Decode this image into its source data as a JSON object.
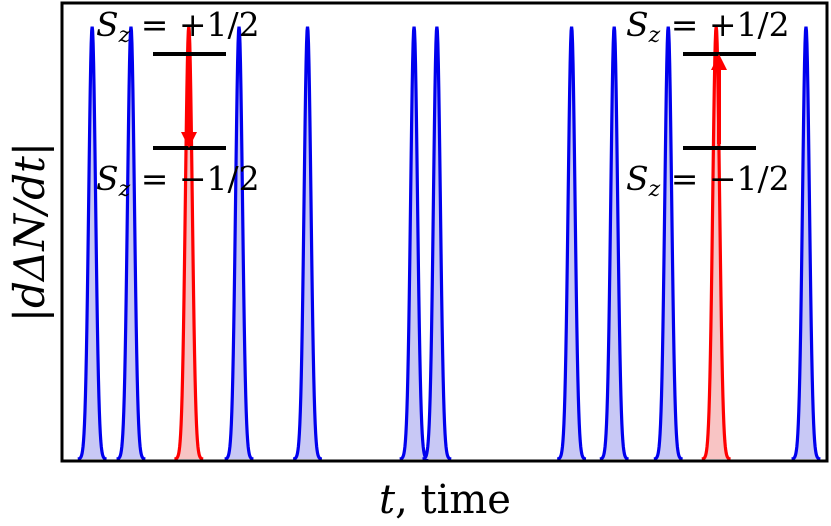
{
  "chart_data": {
    "type": "area",
    "xlabel_var": "t",
    "xlabel_text": ", time",
    "ylabel": "|dΔN/dt|",
    "xlim": [
      0,
      1
    ],
    "ylim": [
      0,
      1.05
    ],
    "grid": false,
    "legend": "none",
    "pulse_height": 1.0,
    "series": [
      {
        "color": "#0000ee",
        "fill": "#c8c8f5",
        "pulses": [
          0.037,
          0.088,
          0.23,
          0.32,
          0.46,
          0.49,
          0.667,
          0.723,
          0.794,
          0.975
        ]
      },
      {
        "color": "#ff0000",
        "fill": "#f8c4c4",
        "pulses": [
          0.164,
          0.857
        ]
      }
    ],
    "annotations": {
      "left": {
        "upper": "S_z = +1/2",
        "lower": "S_z = −1/2",
        "direction": "down",
        "arrow_color": "#ff0000"
      },
      "right": {
        "upper": "S_z = +1/2",
        "lower": "S_z = −1/2",
        "direction": "up",
        "arrow_color": "#ff0000"
      }
    }
  }
}
